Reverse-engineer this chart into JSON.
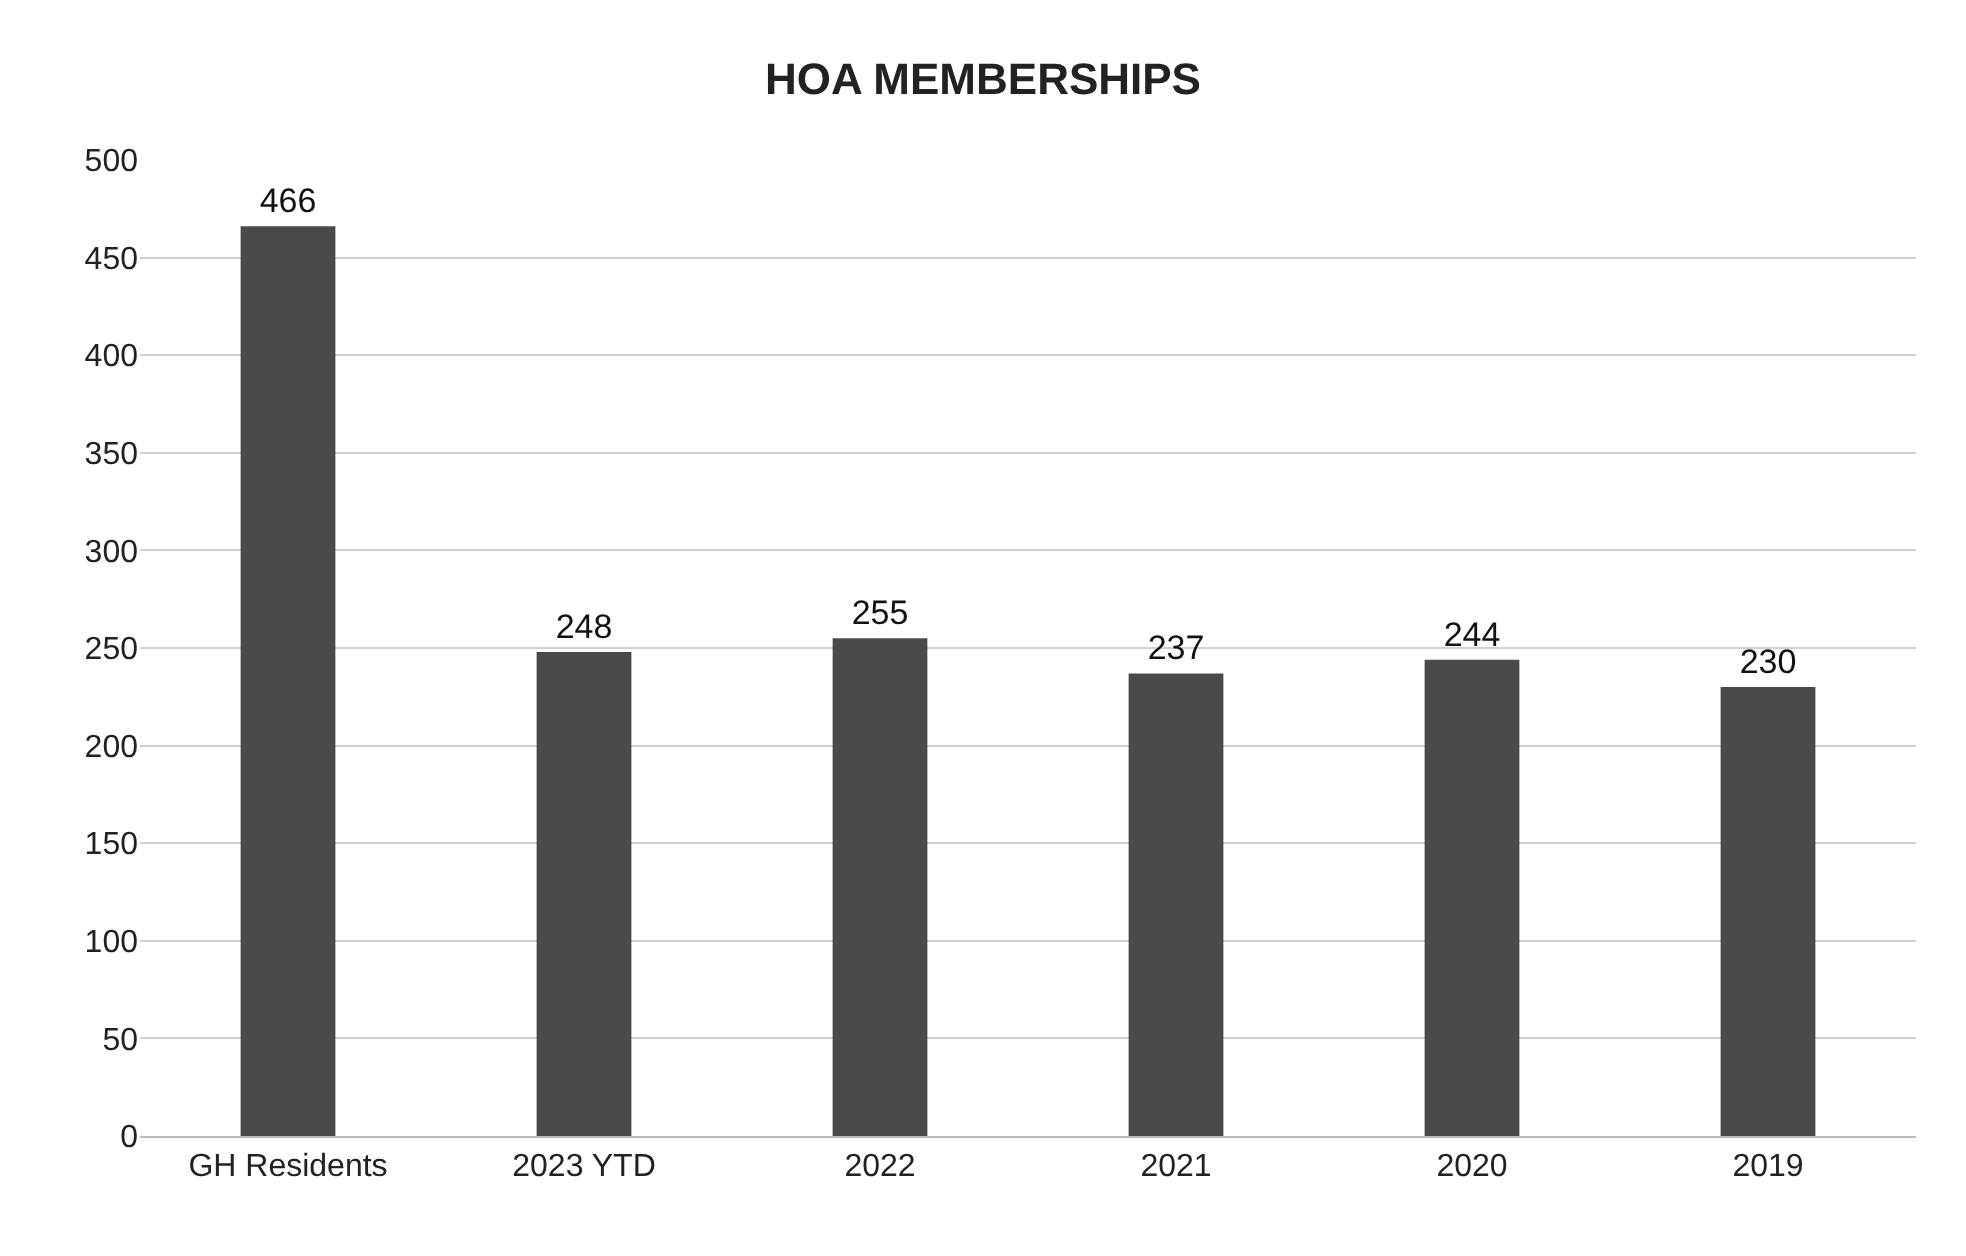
{
  "chart_data": {
    "type": "bar",
    "title": "HOA MEMBERSHIPS",
    "categories": [
      "GH Residents",
      "2023 YTD",
      "2022",
      "2021",
      "2020",
      "2019"
    ],
    "values": [
      466,
      248,
      255,
      237,
      244,
      230
    ],
    "color": "#4a4a4a",
    "ylim": [
      0,
      500
    ],
    "yticks": [
      0,
      50,
      100,
      150,
      200,
      250,
      300,
      350,
      400,
      450,
      500
    ],
    "grid": "y",
    "data_labels": true
  }
}
